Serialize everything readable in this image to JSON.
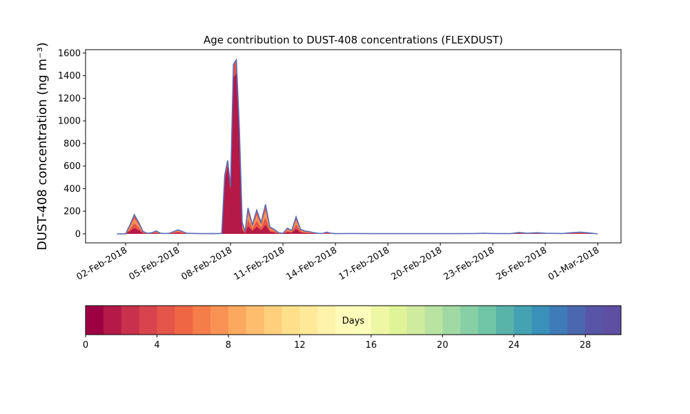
{
  "chart_data": {
    "type": "area",
    "title": "Age contribution to DUST-408 concentrations (FLEXDUST)",
    "ylabel": "DUST-408 concentration (ng m⁻³)",
    "xlabel": "",
    "x_range": [
      "2018-01-30T17:00",
      "2018-03-02T08:00"
    ],
    "ylim": [
      -80,
      1630
    ],
    "y_ticks": [
      0,
      200,
      400,
      600,
      800,
      1000,
      1200,
      1400,
      1600
    ],
    "x_ticks": [
      "2018-02-02",
      "2018-02-05",
      "2018-02-08",
      "2018-02-11",
      "2018-02-14",
      "2018-02-17",
      "2018-02-20",
      "2018-02-23",
      "2018-02-26",
      "2018-03-01"
    ],
    "x_tick_labels": [
      "02-Feb-2018",
      "05-Feb-2018",
      "08-Feb-2018",
      "11-Feb-2018",
      "14-Feb-2018",
      "17-Feb-2018",
      "20-Feb-2018",
      "23-Feb-2018",
      "26-Feb-2018",
      "01-Mar-2018"
    ],
    "grid": false,
    "series": [
      {
        "x": [
          "2018-02-01T12:00",
          "2018-02-01T18:00",
          "2018-02-02T00:00",
          "2018-02-02T06:00",
          "2018-02-02T12:00",
          "2018-02-02T18:00",
          "2018-02-03T00:00",
          "2018-02-03T06:00",
          "2018-02-03T12:00",
          "2018-02-03T18:00",
          "2018-02-04T00:00",
          "2018-02-04T06:00",
          "2018-02-04T12:00",
          "2018-02-04T18:00",
          "2018-02-05T00:00",
          "2018-02-05T12:00",
          "2018-02-06T00:00",
          "2018-02-06T12:00",
          "2018-02-07T00:00",
          "2018-02-07T06:00",
          "2018-02-07T12:00",
          "2018-02-07T16:00",
          "2018-02-07T20:00",
          "2018-02-08T00:00",
          "2018-02-08T04:00",
          "2018-02-08T08:00",
          "2018-02-08T12:00",
          "2018-02-08T16:00",
          "2018-02-08T20:00",
          "2018-02-09T00:00",
          "2018-02-09T06:00",
          "2018-02-09T12:00",
          "2018-02-09T18:00",
          "2018-02-10T00:00",
          "2018-02-10T06:00",
          "2018-02-10T12:00",
          "2018-02-10T18:00",
          "2018-02-11T00:00",
          "2018-02-11T06:00",
          "2018-02-11T12:00",
          "2018-02-11T18:00",
          "2018-02-12T00:00",
          "2018-02-12T06:00",
          "2018-02-12T12:00",
          "2018-02-12T18:00",
          "2018-02-13T00:00",
          "2018-02-13T06:00",
          "2018-02-13T12:00",
          "2018-02-13T18:00",
          "2018-02-14T00:00",
          "2018-02-15T00:00",
          "2018-02-16T00:00",
          "2018-02-17T00:00",
          "2018-02-18T00:00",
          "2018-02-19T00:00",
          "2018-02-20T00:00",
          "2018-02-21T00:00",
          "2018-02-22T00:00",
          "2018-02-22T12:00",
          "2018-02-23T00:00",
          "2018-02-24T00:00",
          "2018-02-24T12:00",
          "2018-02-25T00:00",
          "2018-02-25T12:00",
          "2018-02-26T00:00",
          "2018-02-27T00:00",
          "2018-02-27T12:00",
          "2018-02-28T00:00",
          "2018-02-28T12:00",
          "2018-03-01T00:00"
        ],
        "values": [
          0,
          0,
          0,
          80,
          170,
          100,
          20,
          5,
          10,
          25,
          5,
          3,
          5,
          20,
          35,
          5,
          3,
          2,
          3,
          2,
          5,
          520,
          650,
          420,
          1500,
          1540,
          950,
          100,
          20,
          230,
          80,
          210,
          100,
          260,
          60,
          40,
          10,
          5,
          50,
          30,
          150,
          40,
          25,
          20,
          10,
          5,
          3,
          15,
          5,
          2,
          3,
          2,
          2,
          2,
          2,
          2,
          2,
          3,
          5,
          3,
          2,
          12,
          5,
          10,
          5,
          3,
          10,
          15,
          8,
          0
        ]
      }
    ],
    "colorbar": {
      "label": "Days",
      "min": 0,
      "max": 30,
      "bins": 30,
      "ticks": [
        0,
        4,
        8,
        12,
        16,
        20,
        24,
        28
      ],
      "colormap": "Spectral",
      "colors": [
        "#9e0142",
        "#b41947",
        "#c9304c",
        "#d8434e",
        "#e55549",
        "#ef6645",
        "#f57d4a",
        "#f99355",
        "#fca85e",
        "#fdbd6d",
        "#fed07e",
        "#fee08b",
        "#fee999",
        "#fff2aa",
        "#fffbb8",
        "#fbfdba",
        "#eef8a4",
        "#e1f398",
        "#cfeb9d",
        "#b9e3a0",
        "#a0d9a3",
        "#87cfa4",
        "#6fc5a5",
        "#58b3a9",
        "#45a2b2",
        "#3990b8",
        "#3f7bb6",
        "#4b67ae",
        "#5854a6",
        "#5e4fa2"
      ]
    },
    "outline_color": "#5a6bb5",
    "peak_core_color": "#b41947"
  }
}
